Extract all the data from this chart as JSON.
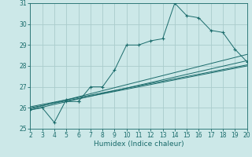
{
  "xlabel": "Humidex (Indice chaleur)",
  "bg_color": "#cce8e8",
  "grid_color": "#aacccc",
  "line_color": "#1a6b6b",
  "xlim": [
    2,
    20
  ],
  "ylim": [
    25,
    31
  ],
  "xticks": [
    2,
    3,
    4,
    5,
    6,
    7,
    8,
    9,
    10,
    11,
    12,
    13,
    14,
    15,
    16,
    17,
    18,
    19,
    20
  ],
  "yticks": [
    25,
    26,
    27,
    28,
    29,
    30,
    31
  ],
  "series": [
    [
      2,
      25.9
    ],
    [
      3,
      26.0
    ],
    [
      4,
      25.3
    ],
    [
      5,
      26.4
    ],
    [
      5,
      26.3
    ],
    [
      6,
      26.3
    ],
    [
      6,
      26.3
    ],
    [
      7,
      27.0
    ],
    [
      8,
      27.0
    ],
    [
      9,
      27.8
    ],
    [
      10,
      29.0
    ],
    [
      11,
      29.0
    ],
    [
      12,
      29.2
    ],
    [
      13,
      29.3
    ],
    [
      14,
      31.0
    ],
    [
      15,
      30.4
    ],
    [
      16,
      30.3
    ],
    [
      17,
      29.7
    ],
    [
      18,
      29.6
    ],
    [
      19,
      28.8
    ],
    [
      20,
      28.2
    ]
  ],
  "linear_lines": [
    [
      [
        2,
        25.9
      ],
      [
        20,
        28.25
      ]
    ],
    [
      [
        2,
        25.95
      ],
      [
        20,
        28.55
      ]
    ],
    [
      [
        2,
        26.05
      ],
      [
        20,
        28.05
      ]
    ],
    [
      [
        2,
        26.0
      ],
      [
        20,
        28.0
      ]
    ]
  ]
}
